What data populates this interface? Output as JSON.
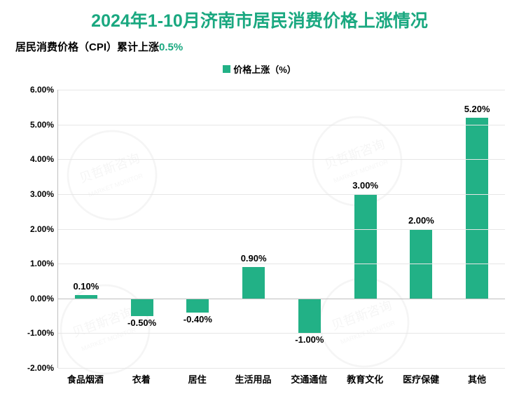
{
  "title": {
    "text": "2024年1-10月济南市居民消费价格上涨情况",
    "color": "#1aa880",
    "fontsize": 25
  },
  "subtitle": {
    "label": "居民消费价格（CPI）累计上涨",
    "value": "0.5%",
    "label_color": "#000000",
    "value_color": "#1aa880",
    "fontsize": 15
  },
  "legend": {
    "label": "价格上涨（%）",
    "color": "#000000",
    "marker_color": "#22b186",
    "fontsize": 13
  },
  "chart": {
    "type": "bar",
    "categories": [
      "食品烟酒",
      "衣着",
      "居住",
      "生活用品",
      "交通通信",
      "教育文化",
      "医疗保健",
      "其他"
    ],
    "values": [
      0.1,
      -0.5,
      -0.4,
      0.9,
      -1.0,
      3.0,
      2.0,
      5.2
    ],
    "value_labels": [
      "0.10%",
      "-0.50%",
      "-0.40%",
      "0.90%",
      "-1.00%",
      "3.00%",
      "2.00%",
      "5.20%"
    ],
    "bar_color": "#22b186",
    "bar_width_ratio": 0.4,
    "ymin": -2.0,
    "ymax": 6.0,
    "ytick_step": 1.0,
    "ytick_labels": [
      "-2.00%",
      "-1.00%",
      "0.00%",
      "1.00%",
      "2.00%",
      "3.00%",
      "4.00%",
      "5.00%",
      "6.00%"
    ],
    "ytick_values": [
      -2.0,
      -1.0,
      0.0,
      1.0,
      2.0,
      3.0,
      4.0,
      5.0,
      6.0
    ],
    "grid_color": "#e6e6e6",
    "axis_color": "#bfbfbf",
    "tick_font_color": "#000000",
    "tick_fontsize": 12,
    "x_label_fontsize": 13,
    "data_label_fontsize": 13,
    "data_label_color": "#000000",
    "background_color": "#ffffff"
  },
  "watermark": {
    "text_cn": "贝哲斯咨询",
    "text_en": "MARKET MONITOR",
    "color": "#9aa0a6"
  }
}
